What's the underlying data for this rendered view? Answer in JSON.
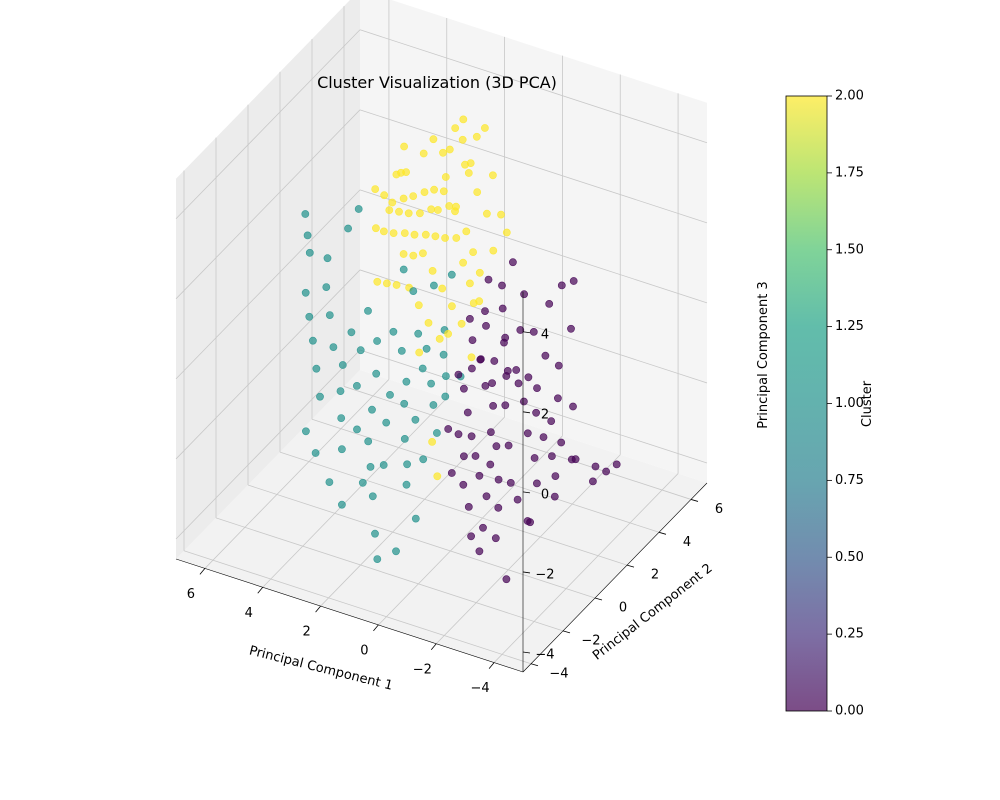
{
  "chart_data": {
    "type": "scatter",
    "title": "Cluster Visualization (3D PCA)",
    "xlabel": "Principal Component 1",
    "ylabel": "Principal Component 2",
    "zlabel": "Principal Component 3",
    "xlim": [
      -5,
      7
    ],
    "ylim": [
      -4.5,
      7
    ],
    "zlim": [
      -4.5,
      5
    ],
    "xticks": [
      -4,
      -2,
      0,
      2,
      4,
      6
    ],
    "yticks": [
      -4,
      -2,
      0,
      2,
      4,
      6
    ],
    "zticks": [
      -4,
      -2,
      0,
      2,
      4
    ],
    "grid": true,
    "colormap": "viridis",
    "marker_alpha": 0.7,
    "colorbar": {
      "label": "Cluster",
      "min": 0.0,
      "max": 2.0,
      "ticks": [
        "0.00",
        "0.25",
        "0.50",
        "0.75",
        "1.00",
        "1.25",
        "1.50",
        "1.75",
        "2.00"
      ]
    },
    "colors": {
      "cluster_0": "#440154",
      "cluster_1": "#21918c",
      "cluster_2": "#fde725",
      "pane": "#f2f2f2",
      "grid": "#c8c8c8"
    },
    "series": [
      {
        "cluster": 0,
        "points": [
          [
            -3.6,
            1.2,
            2.6
          ],
          [
            -3.3,
            1.0,
            2.5
          ],
          [
            -3.0,
            -0.6,
            -2.8
          ],
          [
            -3.2,
            -0.8,
            -2.7
          ],
          [
            -2.6,
            -1.2,
            -4.1
          ],
          [
            -3.2,
            1.8,
            -2.2
          ],
          [
            -3.5,
            1.5,
            -2.0
          ],
          [
            -3.8,
            2.2,
            -2.4
          ],
          [
            -4.0,
            2.5,
            -2.6
          ],
          [
            -4.2,
            2.8,
            -2.5
          ],
          [
            -3.6,
            2.4,
            -2.9
          ],
          [
            -3.0,
            1.5,
            -1.7
          ],
          [
            -2.6,
            1.6,
            -1.3
          ],
          [
            -2.3,
            1.2,
            -1.0
          ],
          [
            -2.1,
            0.8,
            -0.6
          ],
          [
            -1.8,
            1.0,
            -0.3
          ],
          [
            -2.0,
            1.8,
            -0.7
          ],
          [
            -1.7,
            1.8,
            -0.5
          ],
          [
            -1.5,
            1.4,
            -0.2
          ],
          [
            -1.6,
            0.6,
            0.0
          ],
          [
            -2.4,
            0.5,
            -1.2
          ],
          [
            -2.8,
            0.2,
            -1.6
          ],
          [
            -3.1,
            -0.2,
            -2.0
          ],
          [
            -2.6,
            -0.5,
            -2.4
          ],
          [
            -2.2,
            -0.2,
            -2.2
          ],
          [
            -1.9,
            0.2,
            -1.5
          ],
          [
            -1.6,
            -0.4,
            -1.8
          ],
          [
            -1.4,
            0.0,
            -1.2
          ],
          [
            -1.2,
            0.5,
            -0.8
          ],
          [
            -1.0,
            0.8,
            -0.4
          ],
          [
            -0.8,
            1.3,
            -0.1
          ],
          [
            -0.9,
            1.8,
            0.3
          ],
          [
            -1.2,
            2.2,
            0.4
          ],
          [
            -1.5,
            2.5,
            0.3
          ],
          [
            -1.3,
            1.0,
            0.6
          ],
          [
            -1.1,
            0.2,
            -0.2
          ],
          [
            -0.7,
            0.6,
            0.2
          ],
          [
            -0.5,
            1.0,
            0.0
          ],
          [
            -0.6,
            0.0,
            -0.9
          ],
          [
            -0.9,
            -0.3,
            -1.3
          ],
          [
            -1.2,
            -0.6,
            -1.6
          ],
          [
            -1.5,
            -0.9,
            -1.9
          ],
          [
            -1.8,
            -1.0,
            -2.3
          ],
          [
            -2.1,
            -0.8,
            -2.6
          ],
          [
            -1.9,
            -1.4,
            -2.9
          ],
          [
            -1.6,
            -1.6,
            -3.1
          ],
          [
            -1.3,
            -1.2,
            -2.6
          ],
          [
            -1.0,
            -1.0,
            -2.2
          ],
          [
            -0.8,
            -0.6,
            -1.7
          ],
          [
            -0.5,
            -0.4,
            -1.3
          ],
          [
            -0.3,
            0.3,
            -0.5
          ],
          [
            -0.4,
            1.5,
            0.6
          ],
          [
            -0.7,
            2.0,
            0.9
          ],
          [
            -1.0,
            2.8,
            1.0
          ],
          [
            -0.4,
            2.5,
            1.2
          ],
          [
            -0.2,
            1.8,
            0.8
          ],
          [
            -0.1,
            1.2,
            0.3
          ],
          [
            -0.3,
            0.8,
            -0.2
          ],
          [
            -2.5,
            2.2,
            -1.0
          ],
          [
            -2.8,
            2.6,
            -1.3
          ],
          [
            -2.2,
            2.8,
            -0.5
          ],
          [
            -1.9,
            2.5,
            -0.2
          ],
          [
            -3.3,
            0.6,
            -2.1
          ],
          [
            -3.5,
            0.2,
            -2.4
          ],
          [
            -2.9,
            1.1,
            -1.9
          ],
          [
            -2.5,
            1.3,
            -1.6
          ],
          [
            -2.0,
            -0.6,
            -2.0
          ],
          [
            -1.7,
            -0.2,
            -1.4
          ],
          [
            -1.4,
            0.9,
            -0.9
          ],
          [
            -1.1,
            1.6,
            -0.4
          ],
          [
            -0.6,
            -1.0,
            -2.0
          ],
          [
            -0.2,
            -0.5,
            -1.2
          ],
          [
            0.0,
            0.5,
            -0.3
          ],
          [
            0.1,
            1.4,
            0.7
          ],
          [
            -0.1,
            2.2,
            1.4
          ],
          [
            -0.5,
            3.0,
            1.6
          ],
          [
            -1.7,
            3.1,
            0.8
          ],
          [
            -2.4,
            3.2,
            0.3
          ],
          [
            -2.0,
            -1.8,
            -3.3
          ],
          [
            -2.4,
            -1.5,
            -3.0
          ]
        ]
      },
      {
        "cluster": 1,
        "points": [
          [
            1.5,
            -2.0,
            -3.6
          ],
          [
            1.2,
            -2.4,
            -4.0
          ],
          [
            1.8,
            -1.6,
            -2.9
          ],
          [
            2.1,
            -1.2,
            -2.4
          ],
          [
            2.4,
            -0.8,
            -2.0
          ],
          [
            2.0,
            -0.4,
            -1.6
          ],
          [
            1.6,
            0.0,
            -1.2
          ],
          [
            1.3,
            -0.5,
            -1.8
          ],
          [
            1.0,
            -0.9,
            -2.2
          ],
          [
            0.8,
            -1.3,
            -2.5
          ],
          [
            0.5,
            -0.8,
            -2.0
          ],
          [
            0.3,
            -0.3,
            -1.5
          ],
          [
            0.7,
            0.2,
            -1.1
          ],
          [
            1.0,
            0.6,
            -0.8
          ],
          [
            1.4,
            0.8,
            -0.6
          ],
          [
            1.8,
            0.5,
            -0.9
          ],
          [
            2.2,
            0.2,
            -1.2
          ],
          [
            2.6,
            -0.2,
            -1.5
          ],
          [
            2.9,
            -0.6,
            -1.9
          ],
          [
            3.2,
            -1.0,
            -2.3
          ],
          [
            3.5,
            -0.5,
            -1.8
          ],
          [
            3.8,
            0.0,
            -1.4
          ],
          [
            4.0,
            0.5,
            -1.0
          ],
          [
            3.6,
            0.9,
            -0.7
          ],
          [
            3.2,
            1.2,
            -0.5
          ],
          [
            2.8,
            1.5,
            -0.3
          ],
          [
            2.4,
            1.3,
            -0.6
          ],
          [
            2.0,
            1.6,
            -0.2
          ],
          [
            1.6,
            1.4,
            -0.4
          ],
          [
            1.2,
            1.8,
            0.0
          ],
          [
            0.9,
            1.2,
            -0.3
          ],
          [
            0.6,
            0.8,
            -0.6
          ],
          [
            4.4,
            -0.2,
            -1.6
          ],
          [
            4.8,
            0.3,
            -1.2
          ],
          [
            5.2,
            0.8,
            -0.8
          ],
          [
            5.6,
            1.3,
            -0.5
          ],
          [
            6.0,
            1.8,
            -0.2
          ],
          [
            5.4,
            2.0,
            0.0
          ],
          [
            5.0,
            1.5,
            -0.4
          ],
          [
            4.6,
            1.0,
            -0.9
          ],
          [
            4.2,
            1.4,
            -0.6
          ],
          [
            3.9,
            1.9,
            -0.2
          ],
          [
            6.3,
            2.6,
            0.4
          ],
          [
            6.6,
            3.0,
            0.6
          ],
          [
            5.8,
            2.8,
            0.3
          ],
          [
            4.0,
            -1.2,
            -2.5
          ],
          [
            4.5,
            -0.9,
            -2.2
          ],
          [
            3.3,
            -1.6,
            -2.9
          ],
          [
            2.7,
            -1.9,
            -3.2
          ],
          [
            3.0,
            2.5,
            0.8
          ],
          [
            2.5,
            2.2,
            0.5
          ],
          [
            1.9,
            2.4,
            0.7
          ],
          [
            4.5,
            2.4,
            2.0
          ],
          [
            5.2,
            3.0,
            1.1
          ],
          [
            2.2,
            -1.5,
            -2.7
          ],
          [
            1.7,
            -1.1,
            -2.3
          ],
          [
            1.1,
            -0.2,
            -1.4
          ],
          [
            0.4,
            0.4,
            -0.9
          ],
          [
            0.2,
            1.0,
            -0.6
          ],
          [
            2.9,
            0.6,
            -1.0
          ],
          [
            3.4,
            0.3,
            -1.3
          ],
          [
            1.5,
            2.8,
            0.9
          ],
          [
            6.9,
            3.4,
            0.9
          ],
          [
            0.2,
            -1.8,
            -3.0
          ],
          [
            0.5,
            -2.5,
            -3.6
          ]
        ]
      },
      {
        "cluster": 2,
        "points": [
          [
            -0.2,
            2.8,
            2.8
          ],
          [
            0.3,
            3.2,
            3.5
          ],
          [
            0.8,
            3.6,
            4.4
          ],
          [
            1.4,
            3.8,
            3.3
          ],
          [
            1.9,
            4.2,
            3.6
          ],
          [
            2.4,
            4.3,
            3.2
          ],
          [
            2.8,
            4.6,
            2.9
          ],
          [
            3.3,
            4.9,
            3.0
          ],
          [
            3.8,
            5.2,
            2.4
          ],
          [
            4.3,
            5.0,
            1.9
          ],
          [
            4.8,
            5.3,
            1.6
          ],
          [
            5.0,
            4.9,
            1.2
          ],
          [
            4.5,
            4.5,
            1.3
          ],
          [
            4.0,
            4.3,
            1.6
          ],
          [
            3.5,
            4.0,
            1.9
          ],
          [
            3.0,
            3.8,
            2.2
          ],
          [
            2.5,
            3.5,
            2.5
          ],
          [
            2.0,
            3.2,
            2.7
          ],
          [
            1.5,
            3.0,
            2.4
          ],
          [
            1.0,
            2.8,
            2.1
          ],
          [
            0.6,
            2.5,
            1.8
          ],
          [
            0.2,
            2.2,
            1.5
          ],
          [
            -0.1,
            2.5,
            2.0
          ],
          [
            -0.4,
            2.8,
            2.4
          ],
          [
            0.4,
            3.0,
            2.6
          ],
          [
            0.9,
            3.3,
            2.9
          ],
          [
            1.3,
            3.5,
            3.2
          ],
          [
            1.8,
            3.6,
            2.2
          ],
          [
            2.2,
            3.9,
            2.0
          ],
          [
            2.7,
            4.1,
            1.7
          ],
          [
            3.1,
            4.4,
            1.5
          ],
          [
            3.6,
            4.6,
            1.2
          ],
          [
            4.1,
            4.8,
            1.0
          ],
          [
            4.6,
            5.1,
            0.8
          ],
          [
            5.1,
            5.4,
            0.6
          ],
          [
            5.4,
            5.1,
            0.2
          ],
          [
            4.9,
            4.7,
            0.4
          ],
          [
            4.4,
            4.4,
            0.6
          ],
          [
            3.9,
            4.2,
            0.8
          ],
          [
            3.4,
            3.9,
            1.0
          ],
          [
            2.9,
            3.7,
            1.2
          ],
          [
            2.4,
            3.4,
            1.4
          ],
          [
            1.9,
            3.1,
            1.6
          ],
          [
            1.4,
            2.9,
            1.8
          ],
          [
            1.0,
            2.6,
            1.4
          ],
          [
            0.6,
            2.3,
            1.1
          ],
          [
            0.3,
            2.0,
            0.8
          ],
          [
            0.0,
            1.8,
            1.0
          ],
          [
            0.5,
            1.6,
            0.4
          ],
          [
            1.0,
            1.9,
            0.6
          ],
          [
            1.5,
            2.2,
            0.8
          ],
          [
            2.0,
            2.5,
            1.0
          ],
          [
            2.5,
            2.8,
            1.2
          ],
          [
            3.0,
            3.1,
            0.9
          ],
          [
            3.5,
            3.4,
            0.7
          ],
          [
            2.2,
            2.0,
            0.3
          ],
          [
            1.7,
            1.7,
            0.1
          ],
          [
            1.2,
            1.5,
            -0.1
          ],
          [
            0.8,
            1.3,
            0.2
          ],
          [
            2.7,
            2.3,
            0.5
          ],
          [
            3.3,
            2.6,
            0.3
          ],
          [
            3.8,
            2.9,
            0.1
          ],
          [
            4.3,
            3.2,
            -0.1
          ],
          [
            1.6,
            2.6,
            3.4
          ],
          [
            1.1,
            2.9,
            3.7
          ],
          [
            0.1,
            1.5,
            -0.3
          ],
          [
            0.3,
            -0.6,
            -1.6
          ],
          [
            -0.1,
            -1.0,
            -2.2
          ],
          [
            2.1,
            4.6,
            3.9
          ],
          [
            2.6,
            5.0,
            3.4
          ],
          [
            5.7,
            5.6,
            0.9
          ],
          [
            4.7,
            5.6,
            2.2
          ],
          [
            1.3,
            4.0,
            3.9
          ],
          [
            3.7,
            3.6,
            2.6
          ],
          [
            1.8,
            1.3,
            -0.5
          ]
        ]
      }
    ]
  }
}
